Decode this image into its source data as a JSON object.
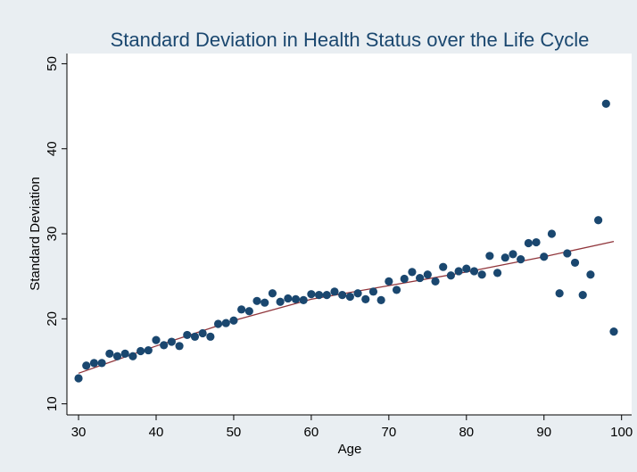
{
  "chart_data": {
    "type": "scatter",
    "title": "Standard Deviation in Health Status over the Life Cycle",
    "x_label": "Age",
    "y_label": "Standard Deviation",
    "x": [
      30,
      31,
      32,
      33,
      34,
      35,
      36,
      37,
      38,
      39,
      40,
      41,
      42,
      43,
      44,
      45,
      46,
      47,
      48,
      49,
      50,
      51,
      52,
      53,
      54,
      55,
      56,
      57,
      58,
      59,
      60,
      61,
      62,
      63,
      64,
      65,
      66,
      67,
      68,
      69,
      70,
      71,
      72,
      73,
      74,
      75,
      76,
      77,
      78,
      79,
      80,
      81,
      82,
      83,
      84,
      85,
      86,
      87,
      88,
      89,
      90,
      91,
      92,
      93,
      94,
      95,
      96,
      97,
      98,
      99
    ],
    "series": [
      {
        "color": "#1a476f",
        "values": [
          13.0,
          14.5,
          14.8,
          14.8,
          15.9,
          15.6,
          15.9,
          15.6,
          16.2,
          16.3,
          17.5,
          16.9,
          17.3,
          16.8,
          18.1,
          17.9,
          18.3,
          17.9,
          19.4,
          19.5,
          19.8,
          21.1,
          20.9,
          22.1,
          21.9,
          23.0,
          22.0,
          22.4,
          22.3,
          22.2,
          22.9,
          22.8,
          22.8,
          23.2,
          22.8,
          22.6,
          23.0,
          22.3,
          23.2,
          22.2,
          24.4,
          23.4,
          24.7,
          25.5,
          24.8,
          25.2,
          24.4,
          26.1,
          25.1,
          25.6,
          25.9,
          25.6,
          25.2,
          27.4,
          25.4,
          27.2,
          27.6,
          27.0,
          28.9,
          29.0,
          27.3,
          30.0,
          23.0,
          27.7,
          26.6,
          22.8,
          25.2,
          31.6,
          45.3,
          18.5
        ]
      }
    ],
    "fit_line": {
      "color": "#90353b",
      "x": [
        30,
        40,
        50,
        60,
        70,
        80,
        90,
        99
      ],
      "values": [
        13.6,
        16.8,
        19.8,
        22.3,
        23.9,
        25.5,
        27.3,
        29.1
      ]
    },
    "xlim": [
      28.5,
      101.3
    ],
    "ylim": [
      8.7,
      51.2
    ],
    "xticks": [
      30,
      40,
      50,
      60,
      70,
      80,
      90,
      100
    ],
    "yticks": [
      10,
      20,
      30,
      40,
      50
    ],
    "grid": false
  }
}
